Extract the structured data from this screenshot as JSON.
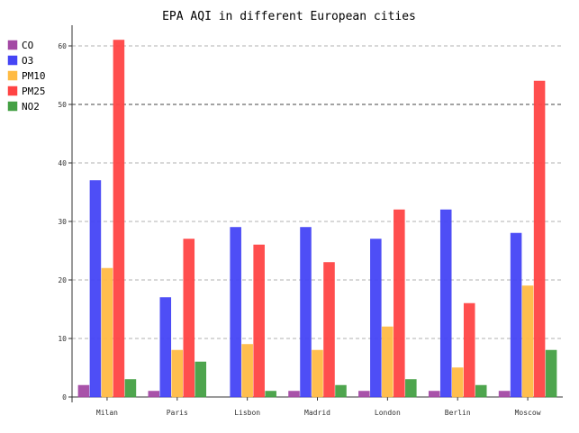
{
  "chart_data": {
    "type": "bar",
    "title": "EPA AQI in different European cities",
    "xlabel": "",
    "ylabel": "",
    "categories": [
      "Milan",
      "Paris",
      "Lisbon",
      "Madrid",
      "London",
      "Berlin",
      "Moscow"
    ],
    "series": [
      {
        "name": "CO",
        "color": "#a349a4",
        "values": [
          2,
          1,
          0,
          1,
          1,
          1,
          1
        ]
      },
      {
        "name": "O3",
        "color": "#4545f5",
        "values": [
          37,
          17,
          29,
          29,
          27,
          32,
          28
        ]
      },
      {
        "name": "PM10",
        "color": "#ffbb44",
        "values": [
          22,
          8,
          9,
          8,
          12,
          5,
          19
        ]
      },
      {
        "name": "PM25",
        "color": "#ff4444",
        "values": [
          61,
          27,
          26,
          23,
          32,
          16,
          54
        ]
      },
      {
        "name": "NO2",
        "color": "#44a044",
        "values": [
          3,
          6,
          1,
          2,
          3,
          2,
          8
        ]
      }
    ],
    "yticks": [
      0,
      10,
      20,
      30,
      40,
      50,
      60
    ],
    "ylim": [
      0,
      62
    ],
    "grid": true,
    "legend": "left"
  }
}
